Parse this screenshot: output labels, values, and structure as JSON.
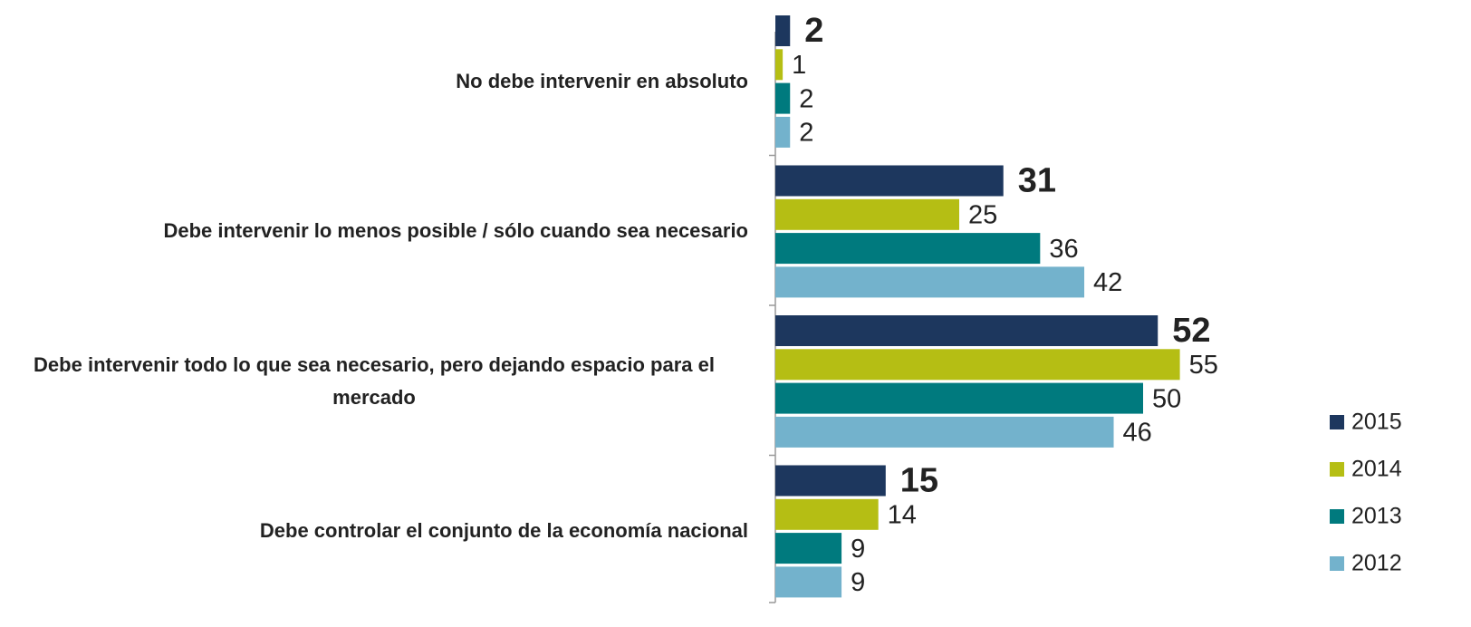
{
  "chart_data": {
    "type": "bar",
    "orientation": "horizontal",
    "categories": [
      "No debe intervenir en absoluto",
      "Debe intervenir lo menos posible / sólo cuando sea necesario",
      "Debe intervenir todo lo que sea necesario, pero dejando espacio para el mercado",
      "Debe controlar el conjunto de la economía nacional"
    ],
    "series": [
      {
        "name": "2015",
        "color": "#1d375e",
        "values": [
          2,
          31,
          52,
          15
        ]
      },
      {
        "name": "2014",
        "color": "#b5be14",
        "values": [
          1,
          25,
          55,
          14
        ]
      },
      {
        "name": "2013",
        "color": "#007a7e",
        "values": [
          2,
          36,
          50,
          9
        ]
      },
      {
        "name": "2012",
        "color": "#73b2cc",
        "values": [
          2,
          42,
          46,
          9
        ]
      }
    ],
    "legend": "right"
  }
}
